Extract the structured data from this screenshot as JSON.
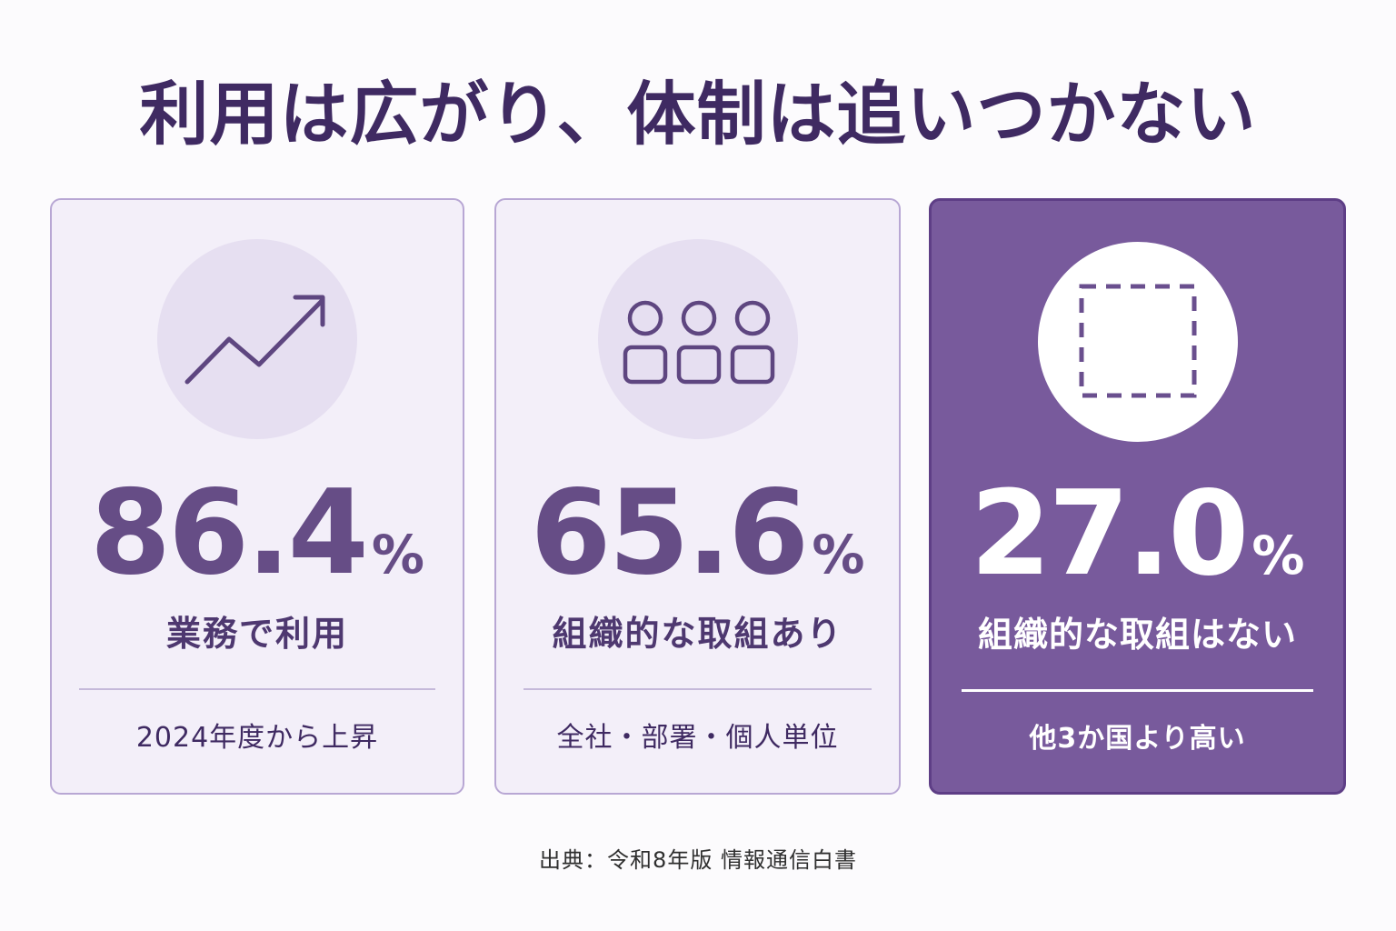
{
  "title": "利用は広がり、体制は追いつかない",
  "cards": [
    {
      "icon": "trend-up-arrow-icon",
      "value": "86.4",
      "unit": "%",
      "label": "業務で利用",
      "note": "2024年度から上昇",
      "highlighted": false
    },
    {
      "icon": "people-group-icon",
      "value": "65.6",
      "unit": "%",
      "label": "組織的な取組あり",
      "note": "全社・部署・個人単位",
      "highlighted": false
    },
    {
      "icon": "dashed-square-icon",
      "value": "27.0",
      "unit": "%",
      "label": "組織的な取組はない",
      "note": "他3か国より高い",
      "highlighted": true
    }
  ],
  "source": "出典：令和8年版 情報通信白書",
  "colors": {
    "title": "#3f2a62",
    "accent_purple": "#785a9c",
    "card_background": "#f3eff9",
    "icon_circle": "#e6dff1"
  }
}
